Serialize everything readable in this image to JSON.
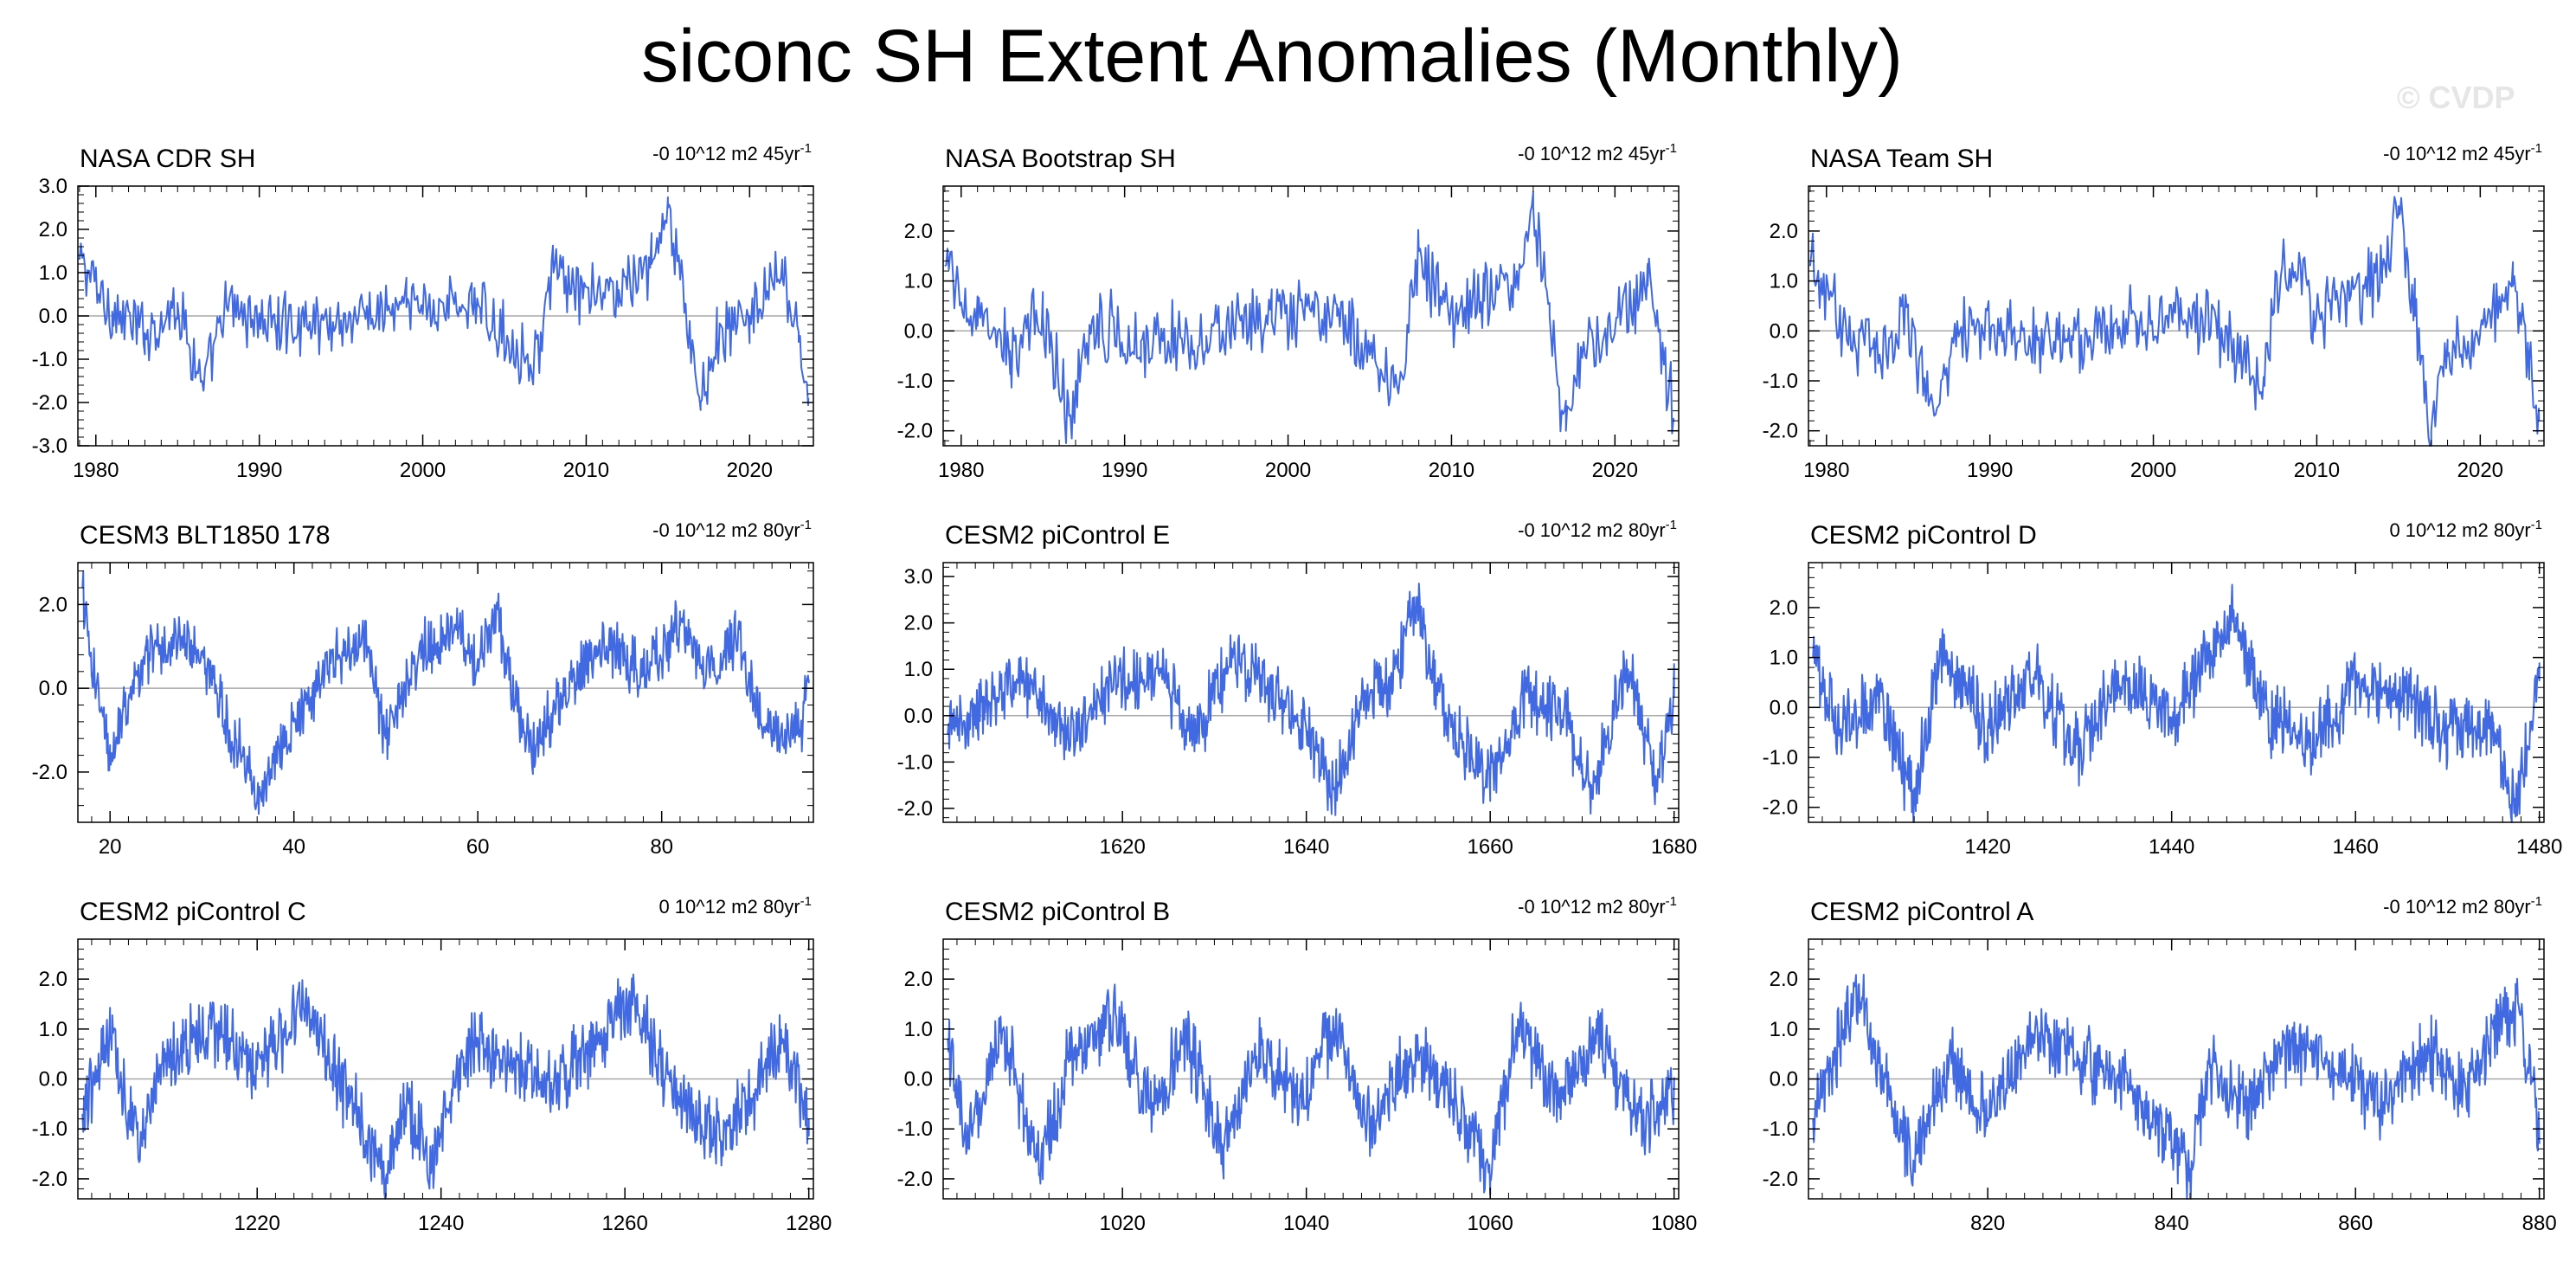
{
  "title": "siconc SH Extent Anomalies (Monthly)",
  "watermark": "© CVDP",
  "colors": {
    "series": "#4169e1",
    "zero_line": "#a8a8a8",
    "axis": "#000000"
  },
  "chart_data": [
    {
      "type": "line",
      "title": "NASA CDR SH",
      "trend": "-0 10^12 m2 45yr",
      "trend_sup": "-1",
      "xlim": [
        1978.9,
        2023.9
      ],
      "ylim": [
        -3.0,
        3.0
      ],
      "xticks": [
        1980,
        1990,
        2000,
        2010,
        2020
      ],
      "yticks": [
        -3.0,
        -2.0,
        -1.0,
        0.0,
        1.0,
        2.0,
        3.0
      ],
      "ytick_labels": [
        "-3.0",
        "-2.0",
        "-1.0",
        "0.0",
        "1.0",
        "2.0",
        "3.0"
      ],
      "x": [
        1979,
        1981,
        1983,
        1985,
        1986.6,
        1988,
        1991,
        1995,
        1999,
        2003,
        2006.8,
        2008,
        2009.8,
        2012,
        2014,
        2015,
        2016,
        2017,
        2018,
        2020,
        2022,
        2023,
        2023.6
      ],
      "y": [
        1.3,
        0.1,
        -0.4,
        0.3,
        -1.7,
        0.2,
        -0.2,
        -0.1,
        0.2,
        0.3,
        -1.1,
        1.0,
        0.4,
        0.6,
        1.2,
        2.5,
        0.3,
        -2.0,
        -0.5,
        0.0,
        0.9,
        -0.6,
        -1.9
      ]
    },
    {
      "type": "line",
      "title": "NASA Bootstrap SH",
      "trend": "-0 10^12 m2 45yr",
      "trend_sup": "-1",
      "xlim": [
        1978.9,
        2023.9
      ],
      "ylim": [
        -2.3,
        2.9
      ],
      "xticks": [
        1980,
        1990,
        2000,
        2010,
        2020
      ],
      "yticks": [
        -2.0,
        -1.0,
        0.0,
        1.0,
        2.0
      ],
      "ytick_labels": [
        "-2.0",
        "-1.0",
        "0.0",
        "1.0",
        "2.0"
      ],
      "x": [
        1979,
        1981,
        1983,
        1985,
        1986.6,
        1988,
        1991,
        1995,
        1999,
        2003,
        2006.8,
        2008,
        2009.8,
        2012,
        2014,
        2015,
        2016,
        2017,
        2018,
        2020,
        2022,
        2023,
        2023.6
      ],
      "y": [
        1.3,
        0.1,
        -0.4,
        0.3,
        -1.7,
        0.2,
        -0.2,
        -0.1,
        0.2,
        0.3,
        -1.1,
        1.6,
        0.4,
        0.6,
        1.2,
        2.5,
        0.3,
        -2.0,
        -0.5,
        0.0,
        0.9,
        -0.6,
        -1.8
      ]
    },
    {
      "type": "line",
      "title": "NASA Team SH",
      "trend": "-0 10^12 m2 45yr",
      "trend_sup": "-1",
      "xlim": [
        1978.9,
        2023.9
      ],
      "ylim": [
        -2.3,
        2.9
      ],
      "xticks": [
        1980,
        1990,
        2000,
        2010,
        2020
      ],
      "yticks": [
        -2.0,
        -1.0,
        0.0,
        1.0,
        2.0
      ],
      "ytick_labels": [
        "-2.0",
        "-1.0",
        "0.0",
        "1.0",
        "2.0"
      ],
      "x": [
        1979,
        1981,
        1983,
        1985,
        1986.6,
        1988,
        1991,
        1995,
        1999,
        2003,
        2006.8,
        2008,
        2009.8,
        2012,
        2014,
        2015,
        2016,
        2017,
        2018,
        2020,
        2022,
        2023,
        2023.6
      ],
      "y": [
        1.3,
        0.1,
        -0.4,
        0.3,
        -1.7,
        0.2,
        -0.2,
        -0.1,
        0.2,
        0.3,
        -1.1,
        1.6,
        0.4,
        0.6,
        1.2,
        2.5,
        0.3,
        -2.0,
        -0.5,
        0.0,
        0.9,
        -0.6,
        -1.8
      ]
    },
    {
      "type": "line",
      "title": "CESM3 BLT1850 178",
      "trend": "-0 10^12 m2 80yr",
      "trend_sup": "-1",
      "xlim": [
        16.5,
        96.5
      ],
      "ylim": [
        -3.2,
        3.0
      ],
      "xticks": [
        20,
        40,
        60,
        80
      ],
      "yticks": [
        -2.0,
        0.0,
        2.0
      ],
      "ytick_labels": [
        "-2.0",
        "0.0",
        "2.0"
      ],
      "x": [
        17,
        18,
        20,
        24,
        28,
        31,
        33,
        35,
        36,
        38,
        40,
        44,
        48,
        50,
        54,
        57,
        60,
        62,
        64,
        66,
        70,
        74,
        78,
        82,
        86,
        88,
        90,
        92,
        95,
        96
      ],
      "y": [
        2.4,
        0.4,
        -1.5,
        0.9,
        1.2,
        0.2,
        -1.0,
        -1.8,
        -2.7,
        -1.5,
        -0.8,
        0.6,
        1.0,
        -1.2,
        1.0,
        1.4,
        0.7,
        1.9,
        -0.3,
        -1.5,
        0.2,
        1.0,
        0.3,
        1.5,
        0.1,
        1.4,
        -0.4,
        -1.0,
        -1.0,
        0.2
      ]
    },
    {
      "type": "line",
      "title": "CESM2 piControl E",
      "trend": "-0 10^12 m2 80yr",
      "trend_sup": "-1",
      "xlim": [
        1600.5,
        1680.5
      ],
      "ylim": [
        -2.3,
        3.3
      ],
      "xticks": [
        1620,
        1640,
        1660,
        1680
      ],
      "yticks": [
        -2.0,
        -1.0,
        0.0,
        1.0,
        2.0,
        3.0
      ],
      "ytick_labels": [
        "-2.0",
        "-1.0",
        "0.0",
        "1.0",
        "2.0",
        "3.0"
      ],
      "x": [
        1601,
        1605,
        1610,
        1614,
        1618,
        1624,
        1628,
        1632,
        1636,
        1640,
        1643,
        1646,
        1650,
        1652,
        1654,
        1656,
        1660,
        1664,
        1668,
        1671,
        1675,
        1678,
        1680
      ],
      "y": [
        -0.4,
        0.3,
        0.8,
        -0.5,
        0.6,
        0.9,
        -0.4,
        1.3,
        0.5,
        -0.3,
        -1.6,
        0.3,
        1.0,
        2.5,
        0.7,
        -0.4,
        -1.4,
        0.5,
        0.0,
        -1.6,
        1.0,
        -1.3,
        0.4
      ]
    },
    {
      "type": "line",
      "title": "CESM2 piControl D",
      "trend": "0 10^12 m2 80yr",
      "trend_sup": "-1",
      "xlim": [
        1400.5,
        1480.5
      ],
      "ylim": [
        -2.3,
        2.9
      ],
      "xticks": [
        1420,
        1440,
        1460,
        1480
      ],
      "yticks": [
        -2.0,
        -1.0,
        0.0,
        1.0,
        2.0
      ],
      "ytick_labels": [
        "-2.0",
        "-1.0",
        "0.0",
        "1.0",
        "2.0"
      ],
      "x": [
        1401,
        1404,
        1408,
        1412,
        1415,
        1420,
        1425,
        1430,
        1434,
        1440,
        1445,
        1447,
        1450,
        1455,
        1460,
        1465,
        1470,
        1475,
        1477,
        1479,
        1480
      ],
      "y": [
        1.0,
        -0.5,
        0.3,
        -1.8,
        1.1,
        -0.4,
        0.6,
        -0.9,
        0.7,
        -0.2,
        1.3,
        1.8,
        -0.1,
        -0.8,
        0.4,
        0.2,
        -0.5,
        -0.3,
        -2.1,
        -0.5,
        0.9
      ]
    },
    {
      "type": "line",
      "title": "CESM2 piControl C",
      "trend": "0 10^12 m2 80yr",
      "trend_sup": "-1",
      "xlim": [
        1200.5,
        1280.5
      ],
      "ylim": [
        -2.4,
        2.8
      ],
      "xticks": [
        1220,
        1240,
        1260,
        1280
      ],
      "yticks": [
        -2.0,
        -1.0,
        0.0,
        1.0,
        2.0
      ],
      "ytick_labels": [
        "-2.0",
        "-1.0",
        "0.0",
        "1.0",
        "2.0"
      ],
      "x": [
        1201,
        1204,
        1207,
        1210,
        1215,
        1220,
        1225,
        1230,
        1234,
        1236,
        1239,
        1243,
        1248,
        1252,
        1256,
        1261,
        1264,
        1268,
        1271,
        1274,
        1277,
        1280
      ],
      "y": [
        -0.7,
        0.8,
        -1.2,
        0.5,
        1.0,
        0.2,
        1.4,
        -0.4,
        -2.0,
        -0.5,
        -1.6,
        0.7,
        0.3,
        -0.2,
        0.6,
        1.7,
        0.2,
        -0.9,
        -1.1,
        -0.3,
        0.9,
        -0.8
      ]
    },
    {
      "type": "line",
      "title": "CESM2 piControl B",
      "trend": "-0 10^12 m2 80yr",
      "trend_sup": "-1",
      "xlim": [
        1000.5,
        1080.5
      ],
      "ylim": [
        -2.4,
        2.8
      ],
      "xticks": [
        1020,
        1040,
        1060,
        1080
      ],
      "yticks": [
        -2.0,
        -1.0,
        0.0,
        1.0,
        2.0
      ],
      "ytick_labels": [
        "-2.0",
        "-1.0",
        "0.0",
        "1.0",
        "2.0"
      ],
      "x": [
        1001,
        1003,
        1007,
        1011,
        1014,
        1019,
        1023,
        1027,
        1031,
        1035,
        1039,
        1043,
        1047,
        1052,
        1056,
        1060,
        1063,
        1067,
        1072,
        1076,
        1080
      ],
      "y": [
        0.8,
        -1.5,
        1.0,
        -1.9,
        0.4,
        1.3,
        -0.6,
        0.8,
        -1.4,
        0.7,
        -0.5,
        1.0,
        -0.9,
        0.6,
        -0.4,
        -2.0,
        1.2,
        -0.3,
        0.8,
        -0.9,
        -0.2
      ]
    },
    {
      "type": "line",
      "title": "CESM2 piControl A",
      "trend": "-0 10^12 m2 80yr",
      "trend_sup": "-1",
      "xlim": [
        800.5,
        880.5
      ],
      "ylim": [
        -2.4,
        2.8
      ],
      "xticks": [
        820,
        840,
        860,
        880
      ],
      "yticks": [
        -2.0,
        -1.0,
        0.0,
        1.0,
        2.0
      ],
      "ytick_labels": [
        "-2.0",
        "-1.0",
        "0.0",
        "1.0",
        "2.0"
      ],
      "x": [
        801,
        803,
        806,
        808,
        812,
        816,
        820,
        825,
        830,
        836,
        842,
        844,
        848,
        853,
        858,
        863,
        868,
        872,
        875,
        878,
        880
      ],
      "y": [
        -0.8,
        0.2,
        1.9,
        0.3,
        -1.7,
        0.5,
        -0.8,
        0.9,
        0.4,
        -0.2,
        -1.8,
        0.3,
        -0.6,
        0.7,
        0.1,
        -0.5,
        0.6,
        -0.2,
        1.0,
        1.3,
        -1.3
      ]
    }
  ]
}
